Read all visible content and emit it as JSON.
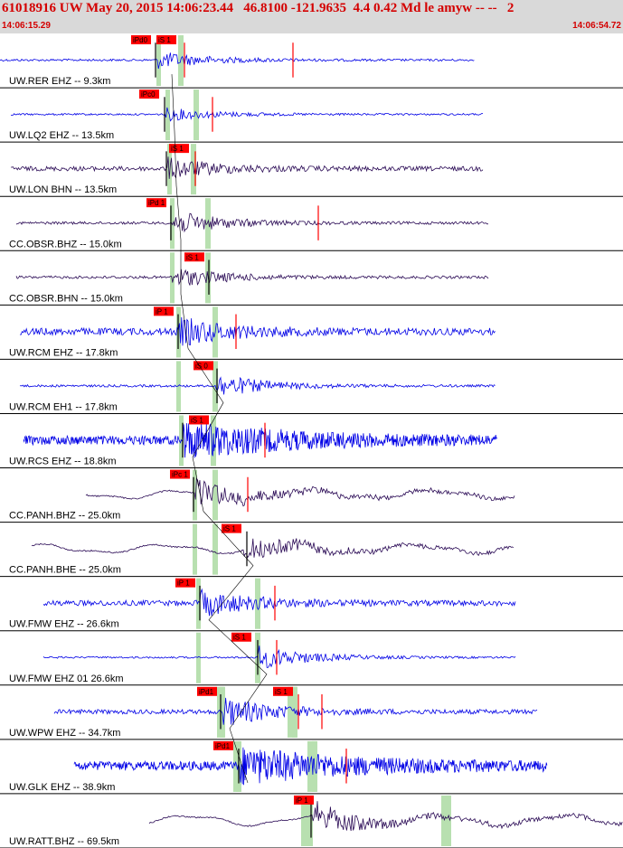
{
  "header": {
    "title": "61018916 UW May 20, 2015 14:06:23.44   46.8100 -121.9635  4.4 0.42 Md le amyw -- --   2",
    "start_time": "14:06:15.29",
    "end_time": "14:06:54.72"
  },
  "colors": {
    "header_bg": "#d9d9d9",
    "header_text": "#d40000",
    "trace_blue": "#0000e6",
    "trace_purple": "#2a0a55",
    "pick_box": "#ff0000",
    "pick_window": "#b8e0b0",
    "divider": "#000000"
  },
  "traces": [
    {
      "label": "UW.RER EHZ -- 9.3km",
      "color": "blue",
      "style": "quiet",
      "x0": 0,
      "x1": 525,
      "onset": 175,
      "amp_noise": 1.2,
      "amp_sig": 9,
      "picks": [
        {
          "text": "iPd0",
          "x": 145
        },
        {
          "text": "iS 1",
          "x": 173
        }
      ],
      "band": [
        173,
        202
      ],
      "marks": [
        172,
        204,
        324
      ]
    },
    {
      "label": "UW.LQ2 EHZ -- 13.5km",
      "color": "blue",
      "style": "quiet",
      "x0": 12,
      "x1": 535,
      "onset": 183,
      "amp_noise": 1.0,
      "amp_sig": 7,
      "picks": [
        {
          "text": "iPc0",
          "x": 154
        }
      ],
      "band": [
        183,
        219
      ],
      "marks": [
        182,
        235
      ]
    },
    {
      "label": "UW.LON BHN -- 13.5km",
      "color": "purple",
      "style": "noisy",
      "x0": 12,
      "x1": 535,
      "onset": 185,
      "amp_noise": 2.5,
      "amp_sig": 11,
      "picks": [
        {
          "text": "iS 1",
          "x": 187
        }
      ],
      "band": [
        185,
        216
      ],
      "marks": [
        184,
        216
      ]
    },
    {
      "label": "CC.OBSR.BHZ -- 15.0km",
      "color": "purple",
      "style": "noisy",
      "x0": 18,
      "x1": 540,
      "onset": 190,
      "amp_noise": 1.5,
      "amp_sig": 13,
      "picks": [
        {
          "text": "iPd 1",
          "x": 162
        }
      ],
      "band": [
        188,
        232
      ],
      "marks": [
        189,
        352
      ]
    },
    {
      "label": "CC.OBSR.BHN -- 15.0km",
      "color": "purple",
      "style": "noisy",
      "x0": 18,
      "x1": 540,
      "onset": 190,
      "amp_noise": 1.5,
      "amp_sig": 11,
      "picks": [
        {
          "text": "iS 1",
          "x": 204
        }
      ],
      "band": [
        188,
        232
      ],
      "marks": [
        231
      ]
    },
    {
      "label": "UW.RCM EHZ -- 17.8km",
      "color": "blue",
      "style": "noisy",
      "x0": 22,
      "x1": 548,
      "onset": 198,
      "amp_noise": 4,
      "amp_sig": 14,
      "picks": [
        {
          "text": "iP 1",
          "x": 170
        }
      ],
      "band": [
        195,
        240
      ],
      "marks": [
        197,
        261
      ]
    },
    {
      "label": "UW.RCM EH1 -- 17.8km",
      "color": "blue",
      "style": "quiet",
      "x0": 22,
      "x1": 548,
      "onset": 237,
      "amp_noise": 1.3,
      "amp_sig": 13,
      "picks": [
        {
          "text": "iS 0",
          "x": 214
        }
      ],
      "band": [
        195,
        240
      ],
      "marks": [
        240
      ]
    },
    {
      "label": "UW.RCS EHZ -- 18.8km",
      "color": "blue",
      "style": "heavy",
      "x0": 26,
      "x1": 550,
      "onset": 203,
      "amp_noise": 5,
      "amp_sig": 18,
      "picks": [
        {
          "text": "iS 1",
          "x": 209
        }
      ],
      "band": [
        198,
        238
      ],
      "marks": [
        202,
        293
      ]
    },
    {
      "label": "CC.PANH.BHZ -- 25.0km",
      "color": "purple",
      "style": "long",
      "x0": 95,
      "x1": 570,
      "onset": 215,
      "amp_noise": 4,
      "amp_sig": 14,
      "picks": [
        {
          "text": "iPc 1",
          "x": 188
        }
      ],
      "band": [
        213,
        240
      ],
      "marks": [
        214,
        274
      ]
    },
    {
      "label": "CC.PANH.BHE -- 25.0km",
      "color": "purple",
      "style": "long",
      "x0": 35,
      "x1": 568,
      "onset": 270,
      "amp_noise": 4,
      "amp_sig": 12,
      "picks": [
        {
          "text": "iS 1",
          "x": 245
        }
      ],
      "band": [
        213,
        240
      ],
      "marks": [
        273
      ]
    },
    {
      "label": "UW.FMW EHZ -- 26.6km",
      "color": "blue",
      "style": "noisy",
      "x0": 48,
      "x1": 570,
      "onset": 221,
      "amp_noise": 3,
      "amp_sig": 14,
      "picks": [
        {
          "text": "iP 1",
          "x": 194
        }
      ],
      "band": [
        217,
        287
      ],
      "marks": [
        221,
        304
      ]
    },
    {
      "label": "UW.FMW EHZ 01 26.6km",
      "color": "blue",
      "style": "quiet",
      "x0": 48,
      "x1": 570,
      "onset": 285,
      "amp_noise": 1.0,
      "amp_sig": 13,
      "picks": [
        {
          "text": "iS 1",
          "x": 256
        }
      ],
      "band": [
        217,
        287
      ],
      "marks": [
        285,
        306
      ]
    },
    {
      "label": "UW.WPW EHZ -- 34.7km",
      "color": "blue",
      "style": "noisy",
      "x0": 60,
      "x1": 595,
      "onset": 244,
      "amp_noise": 2.5,
      "amp_sig": 16,
      "picks": [
        {
          "text": "iPd1",
          "x": 218
        },
        {
          "text": "iS 1",
          "x": 302
        }
      ],
      "band": [
        240,
        248
      ],
      "band2": [
        318,
        328
      ],
      "marks": [
        244,
        330,
        356
      ]
    },
    {
      "label": "UW.GLK EHZ -- 38.9km",
      "color": "blue",
      "style": "heavy",
      "x0": 82,
      "x1": 605,
      "onset": 264,
      "amp_noise": 5,
      "amp_sig": 18,
      "picks": [
        {
          "text": "iPd1",
          "x": 236
        }
      ],
      "band": [
        258,
        266
      ],
      "band2": [
        340,
        350
      ],
      "marks": [
        264,
        383
      ]
    },
    {
      "label": "UW.RATT.BHZ -- 69.5km",
      "color": "purple",
      "style": "long",
      "x0": 165,
      "x1": 689,
      "onset": 345,
      "amp_noise": 5,
      "amp_sig": 14,
      "picks": [
        {
          "text": "iP 1",
          "x": 325
        }
      ],
      "band": [
        333,
        345
      ],
      "band2": [
        488,
        498
      ],
      "marks": [
        344
      ]
    }
  ]
}
